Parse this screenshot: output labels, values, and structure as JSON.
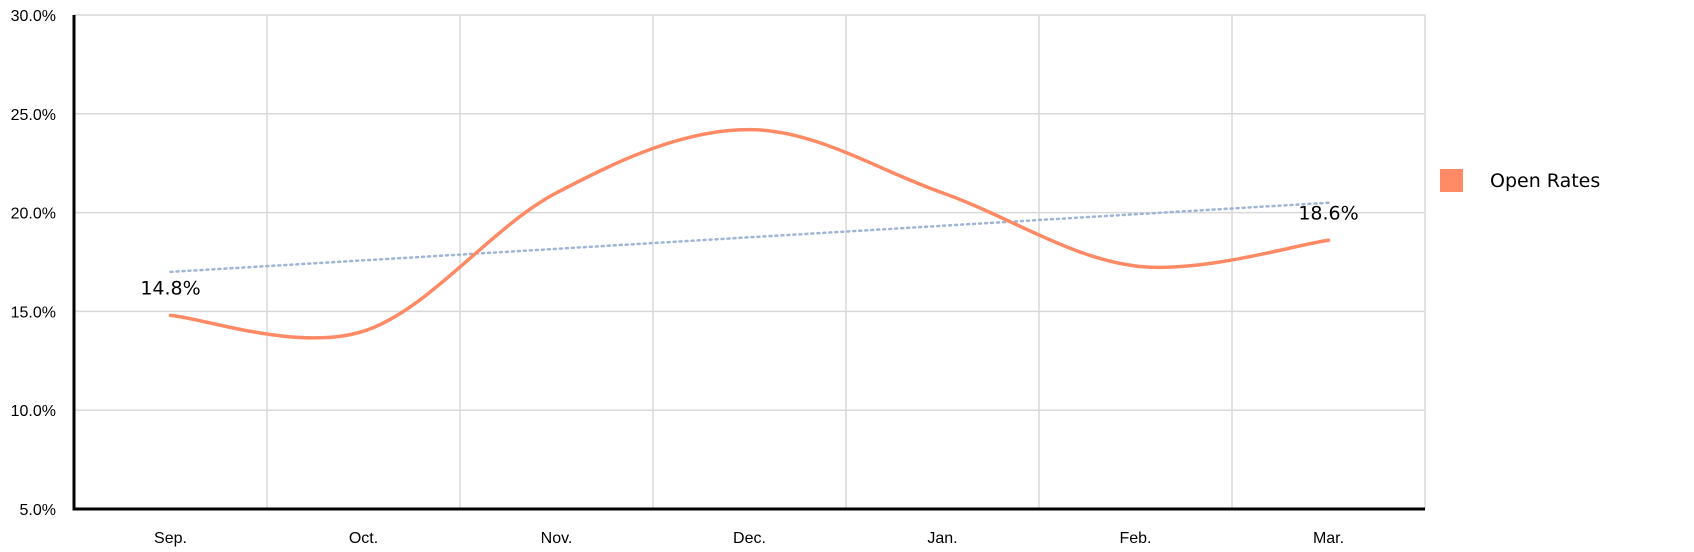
{
  "chart_data": {
    "type": "line",
    "categories": [
      "Sep.",
      "Oct.",
      "Nov.",
      "Dec.",
      "Jan.",
      "Feb.",
      "Mar."
    ],
    "series": [
      {
        "name": "Open Rates",
        "values": [
          14.8,
          14.0,
          21.0,
          24.2,
          21.0,
          17.3,
          18.6
        ],
        "color": "#ff8a65"
      }
    ],
    "trendline": {
      "start": 17.0,
      "end": 20.5,
      "color": "#9fb4d6",
      "style": "dotted"
    },
    "data_labels": [
      {
        "index": 0,
        "text": "14.8%"
      },
      {
        "index": 6,
        "text": "18.6%"
      }
    ],
    "y_ticks": [
      "5.0%",
      "10.0%",
      "15.0%",
      "20.0%",
      "25.0%",
      "30.0%"
    ],
    "ylim": [
      5,
      30
    ],
    "grid": true,
    "legend": {
      "position": "right",
      "label": "Open Rates"
    },
    "title": "",
    "xlabel": "",
    "ylabel": ""
  }
}
